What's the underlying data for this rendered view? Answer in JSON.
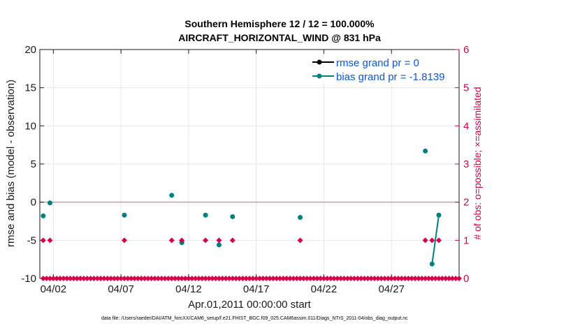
{
  "chart_data": {
    "type": "line",
    "title": "Southern Hemisphere 12 / 12 = 100.000%",
    "subtitle": "AIRCRAFT_HORIZONTAL_WIND @ 831 hPa",
    "xlabel": "Apr.01,2011 00:00:00 start",
    "ylabel": "rmse and bias (model - observation)",
    "ylabel_right": "# of obs: o=possible; ×=assimilated",
    "footer": "data file: /Users/raeder/DAI/ATM_forcXX/CAM6_setup/f.e21.FHIST_BGC.f09_025.CAM6assim.011/Diags_NTrS_2011-04/obs_diag_output.nc",
    "xlim": [
      0.5,
      31.5
    ],
    "ylim": [
      -10,
      20
    ],
    "ylim_right": [
      0,
      6
    ],
    "x_ticks": [
      1.5,
      6.5,
      11.5,
      16.5,
      21.5,
      26.5
    ],
    "x_tick_labels": [
      "04/02",
      "04/07",
      "04/12",
      "04/17",
      "04/22",
      "04/27"
    ],
    "y_ticks": [
      -10,
      -5,
      0,
      5,
      10,
      15,
      20
    ],
    "y_tick_labels": [
      "-10",
      "-5",
      "0",
      "5",
      "10",
      "15",
      "20"
    ],
    "y_ticks_right": [
      0,
      1,
      2,
      3,
      4,
      5,
      6
    ],
    "y_tick_labels_right": [
      "0",
      "1",
      "2",
      "3",
      "4",
      "5",
      "6"
    ],
    "zero_line": 0,
    "legend_position": "top-right",
    "series": [
      {
        "name": "rmse grand pr = 0",
        "color": "#000000",
        "points": []
      },
      {
        "name": "bias grand pr = -1.8139",
        "color": "#008080",
        "points": [
          {
            "x": 0.75,
            "y": -1.8
          },
          {
            "x": 1.25,
            "y": -0.1
          },
          {
            "x": 6.75,
            "y": -1.7
          },
          {
            "x": 10.25,
            "y": 0.9
          },
          {
            "x": 11.0,
            "y": -5.3
          },
          {
            "x": 12.75,
            "y": -1.7
          },
          {
            "x": 13.75,
            "y": -5.6
          },
          {
            "x": 14.75,
            "y": -1.9
          },
          {
            "x": 19.75,
            "y": -2.0
          },
          {
            "x": 29.0,
            "y": 6.7
          },
          {
            "x": 29.5,
            "y": -8.1
          },
          {
            "x": 30.0,
            "y": -1.7
          }
        ],
        "line_segments": [
          [
            [
              29.5,
              -8.1
            ],
            [
              30.0,
              -1.7
            ]
          ]
        ]
      }
    ],
    "obs_possible": {
      "color": "#d6004f",
      "times": [
        0.75,
        1.25,
        6.75,
        10.25,
        11.0,
        12.75,
        13.75,
        14.75,
        19.75,
        29.0,
        29.5,
        30.0
      ],
      "count": 1
    },
    "obs_zero_times_start": 0.75,
    "obs_zero_times_step": 0.25,
    "obs_zero_times_end": 31.5
  },
  "colors": {
    "axis": "#1a1a1a",
    "obs": "#d6004f",
    "bias": "#008080",
    "rmse": "#000000",
    "grid": "#e6e6e6",
    "zero_line": "#c8a0a0",
    "legend_text": "#0b57d0"
  }
}
